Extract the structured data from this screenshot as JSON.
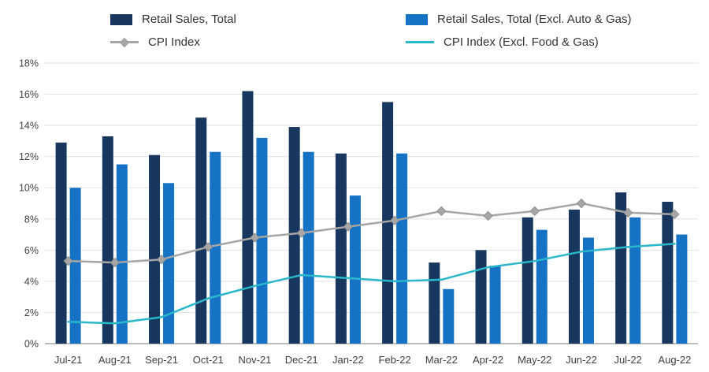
{
  "legend": {
    "items": [
      {
        "label": "Retail Sales, Total",
        "color": "#17375e",
        "swatch": "bar"
      },
      {
        "label": "Retail Sales, Total (Excl. Auto & Gas)",
        "color": "#1672c4",
        "swatch": "bar"
      },
      {
        "label": "CPI Index",
        "color": "#a6a6a6",
        "swatch": "line-diamond"
      },
      {
        "label": "CPI Index (Excl. Food & Gas)",
        "color": "#29b7ca",
        "swatch": "line"
      }
    ]
  },
  "chart_data": {
    "type": "bar",
    "subtype": "combo-bar-line",
    "title": "",
    "xlabel": "",
    "ylabel": "",
    "ylim": [
      0,
      18
    ],
    "ytick_step": 2,
    "ytick_format": "percent",
    "grid": true,
    "legend_position": "top",
    "categories": [
      "Jul-21",
      "Aug-21",
      "Sep-21",
      "Oct-21",
      "Nov-21",
      "Dec-21",
      "Jan-22",
      "Feb-22",
      "Mar-22",
      "Apr-22",
      "May-22",
      "Jun-22",
      "Jul-22",
      "Aug-22"
    ],
    "series": [
      {
        "name": "Retail Sales, Total",
        "type": "bar",
        "color": "#17375e",
        "values": [
          12.9,
          13.3,
          12.1,
          14.5,
          16.2,
          13.9,
          12.2,
          15.5,
          5.2,
          6.0,
          8.1,
          8.6,
          9.7,
          9.1
        ]
      },
      {
        "name": "Retail Sales, Total (Excl. Auto & Gas)",
        "type": "bar",
        "color": "#1672c4",
        "values": [
          10.0,
          11.5,
          10.3,
          12.3,
          13.2,
          12.3,
          9.5,
          12.2,
          3.5,
          5.0,
          7.3,
          6.8,
          8.1,
          7.0
        ]
      },
      {
        "name": "CPI Index",
        "type": "line",
        "marker": "diamond",
        "color": "#a6a6a6",
        "values": [
          5.3,
          5.2,
          5.4,
          6.2,
          6.8,
          7.1,
          7.5,
          7.9,
          8.5,
          8.2,
          8.5,
          9.0,
          8.4,
          8.3
        ]
      },
      {
        "name": "CPI Index (Excl. Food & Gas)",
        "type": "line",
        "marker": "none",
        "color": "#29b7ca",
        "values": [
          1.4,
          1.3,
          1.7,
          2.9,
          3.7,
          4.4,
          4.2,
          4.0,
          4.1,
          4.9,
          5.3,
          5.9,
          6.2,
          6.4
        ]
      }
    ]
  }
}
